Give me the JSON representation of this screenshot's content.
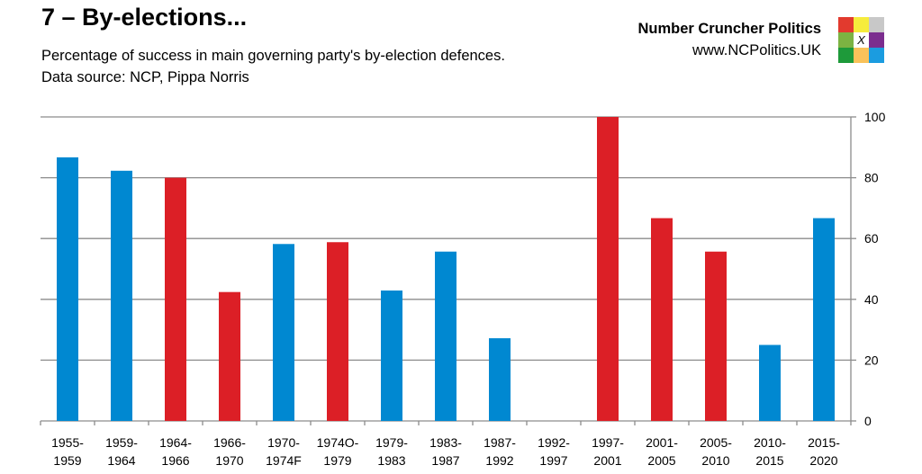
{
  "header": {
    "title": "7 – By-elections...",
    "subtitle_lines": [
      "Percentage of success in main governing party's by-election defences.",
      "Data source: NCP, Pippa Norris"
    ],
    "brand_name": "Number Cruncher Politics",
    "brand_url": "www.NCPolitics.UK",
    "logo_mark": "X",
    "logo_colors": [
      "#e23a2e",
      "#f6ec3c",
      "#c8c8c8",
      "#7cb342",
      "#ffffff",
      "#7b2d8e",
      "#1e9a3a",
      "#f9c25a",
      "#1b9ce0"
    ]
  },
  "chart_data": {
    "type": "bar",
    "categories": [
      [
        "1955-",
        "1959"
      ],
      [
        "1959-",
        "1964"
      ],
      [
        "1964-",
        "1966"
      ],
      [
        "1966-",
        "1970"
      ],
      [
        "1970-",
        "1974F"
      ],
      [
        "1974O-",
        "1979"
      ],
      [
        "1979-",
        "1983"
      ],
      [
        "1983-",
        "1987"
      ],
      [
        "1987-",
        "1992"
      ],
      [
        "1992-",
        "1997"
      ],
      [
        "1997-",
        "2001"
      ],
      [
        "2001-",
        "2005"
      ],
      [
        "2005-",
        "2010"
      ],
      [
        "2010-",
        "2015"
      ],
      [
        "2015-",
        "2020"
      ]
    ],
    "values": [
      86.7,
      82.3,
      80.0,
      42.4,
      58.2,
      58.8,
      42.9,
      55.7,
      27.2,
      0,
      100,
      66.7,
      55.7,
      25.0,
      66.7
    ],
    "bar_colors": [
      "#0088d1",
      "#0088d1",
      "#dc1f26",
      "#dc1f26",
      "#0088d1",
      "#dc1f26",
      "#0088d1",
      "#0088d1",
      "#0088d1",
      "#dc1f26",
      "#dc1f26",
      "#dc1f26",
      "#dc1f26",
      "#0088d1",
      "#0088d1"
    ],
    "ylim": [
      0,
      100
    ],
    "yticks": [
      0,
      20,
      40,
      60,
      80,
      100
    ],
    "y_axis_side": "right",
    "grid": true,
    "title": "",
    "xlabel": "",
    "ylabel": ""
  }
}
